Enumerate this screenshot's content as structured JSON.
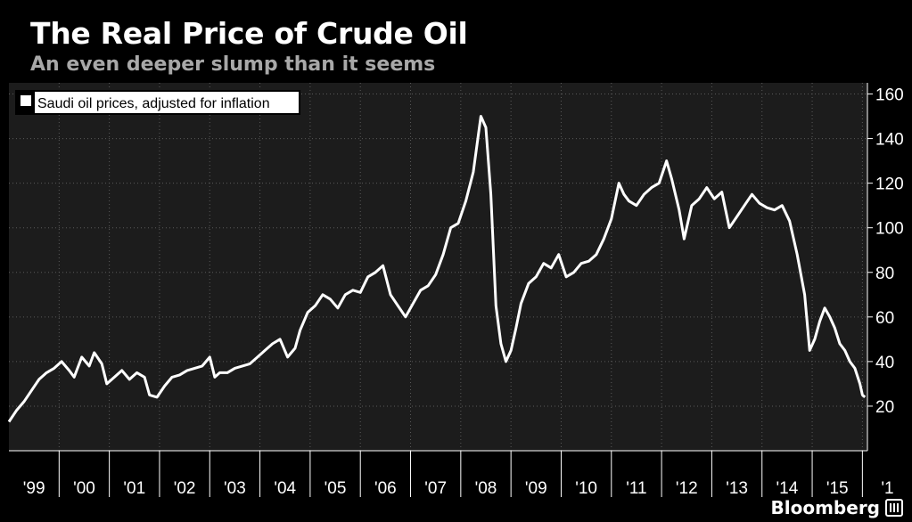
{
  "header": {
    "title": "The Real Price of Crude Oil",
    "subtitle": "An even deeper slump than it seems"
  },
  "footer": {
    "brand": "Bloomberg"
  },
  "colors": {
    "background": "#000000",
    "plot_background": "#1c1c1c",
    "line": "#ffffff",
    "grid": "#5a5a5a",
    "subtitle": "#a8a8a8"
  },
  "chart_data": {
    "type": "line",
    "title": "The Real Price of Crude Oil",
    "subtitle": "An even deeper slump than it seems",
    "legend": {
      "position": "top-left",
      "entries": [
        "Saudi oil prices, adjusted for inflation"
      ]
    },
    "grid": true,
    "y_axis": {
      "side": "right",
      "ylim": [
        0,
        165
      ],
      "ticks": [
        20,
        40,
        60,
        80,
        100,
        120,
        140,
        160
      ]
    },
    "x_axis": {
      "xlim": [
        1999.0,
        2016.1
      ],
      "tick_labels": [
        "'99",
        "'00",
        "'01",
        "'02",
        "'03",
        "'04",
        "'05",
        "'06",
        "'07",
        "'08",
        "'09",
        "'10",
        "'11",
        "'12",
        "'13",
        "'14",
        "'15",
        "'1"
      ]
    },
    "series": [
      {
        "name": "Saudi oil prices, adjusted for inflation",
        "x": [
          1999.0,
          1999.15,
          1999.3,
          1999.45,
          1999.6,
          1999.75,
          1999.9,
          2000.05,
          2000.2,
          2000.3,
          2000.45,
          2000.6,
          2000.7,
          2000.85,
          2000.95,
          2001.1,
          2001.25,
          2001.4,
          2001.55,
          2001.7,
          2001.8,
          2001.95,
          2002.1,
          2002.25,
          2002.4,
          2002.55,
          2002.7,
          2002.85,
          2003.0,
          2003.1,
          2003.2,
          2003.35,
          2003.5,
          2003.65,
          2003.8,
          2003.95,
          2004.1,
          2004.25,
          2004.4,
          2004.55,
          2004.7,
          2004.8,
          2004.95,
          2005.1,
          2005.25,
          2005.4,
          2005.55,
          2005.7,
          2005.85,
          2006.0,
          2006.15,
          2006.3,
          2006.45,
          2006.6,
          2006.75,
          2006.9,
          2007.05,
          2007.2,
          2007.35,
          2007.5,
          2007.65,
          2007.8,
          2007.95,
          2008.1,
          2008.25,
          2008.4,
          2008.5,
          2008.6,
          2008.7,
          2008.8,
          2008.9,
          2009.0,
          2009.1,
          2009.2,
          2009.35,
          2009.5,
          2009.65,
          2009.8,
          2009.95,
          2010.1,
          2010.25,
          2010.4,
          2010.55,
          2010.7,
          2010.85,
          2011.0,
          2011.15,
          2011.25,
          2011.35,
          2011.5,
          2011.65,
          2011.8,
          2011.95,
          2012.1,
          2012.2,
          2012.35,
          2012.45,
          2012.6,
          2012.75,
          2012.9,
          2013.05,
          2013.2,
          2013.35,
          2013.5,
          2013.65,
          2013.8,
          2013.95,
          2014.1,
          2014.25,
          2014.4,
          2014.55,
          2014.7,
          2014.85,
          2014.95,
          2015.05,
          2015.15,
          2015.25,
          2015.35,
          2015.45,
          2015.55,
          2015.65,
          2015.75,
          2015.85,
          2015.95,
          2016.0,
          2016.05
        ],
        "y": [
          13,
          18,
          22,
          27,
          32,
          35,
          37,
          40,
          36,
          33,
          42,
          38,
          44,
          39,
          30,
          33,
          36,
          32,
          35,
          33,
          25,
          24,
          29,
          33,
          34,
          36,
          37,
          38,
          42,
          33,
          35,
          35,
          37,
          38,
          39,
          42,
          45,
          48,
          50,
          42,
          46,
          54,
          62,
          65,
          70,
          68,
          64,
          70,
          72,
          71,
          78,
          80,
          83,
          70,
          65,
          60,
          66,
          72,
          74,
          79,
          88,
          100,
          102,
          112,
          125,
          150,
          145,
          115,
          65,
          48,
          40,
          45,
          55,
          66,
          75,
          78,
          84,
          82,
          88,
          78,
          80,
          84,
          85,
          88,
          95,
          104,
          120,
          115,
          112,
          110,
          115,
          118,
          120,
          130,
          122,
          108,
          95,
          110,
          113,
          118,
          113,
          116,
          100,
          105,
          110,
          115,
          111,
          109,
          108,
          110,
          103,
          88,
          70,
          45,
          50,
          58,
          64,
          60,
          55,
          48,
          45,
          40,
          37,
          30,
          25,
          24
        ]
      }
    ]
  }
}
